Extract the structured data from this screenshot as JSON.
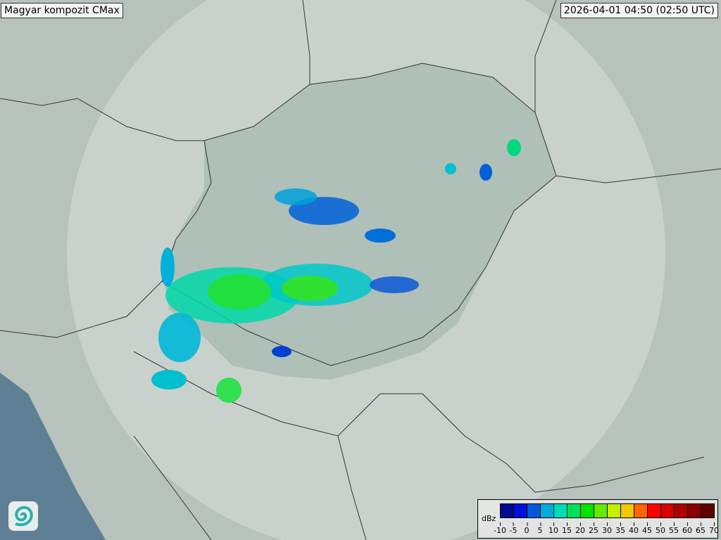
{
  "header": {
    "product_title": "Magyar kompozit  CMax",
    "timestamp": "2026-04-01 04:50 (02:50 UTC)"
  },
  "legend": {
    "unit": "dBz",
    "ticks": [
      "-10",
      "-5",
      "0",
      "5",
      "10",
      "15",
      "20",
      "25",
      "30",
      "35",
      "40",
      "45",
      "50",
      "55",
      "60",
      "65",
      "70"
    ],
    "colors": [
      "#000a8c",
      "#0010d8",
      "#0058d8",
      "#00acdc",
      "#00dcb8",
      "#00e05a",
      "#00e400",
      "#64ec00",
      "#c4f000",
      "#f4c800",
      "#ff6400",
      "#ff0000",
      "#d80000",
      "#b00000",
      "#8a0000",
      "#600000"
    ]
  },
  "logo": {
    "icon": "swirl-logo-icon"
  }
}
